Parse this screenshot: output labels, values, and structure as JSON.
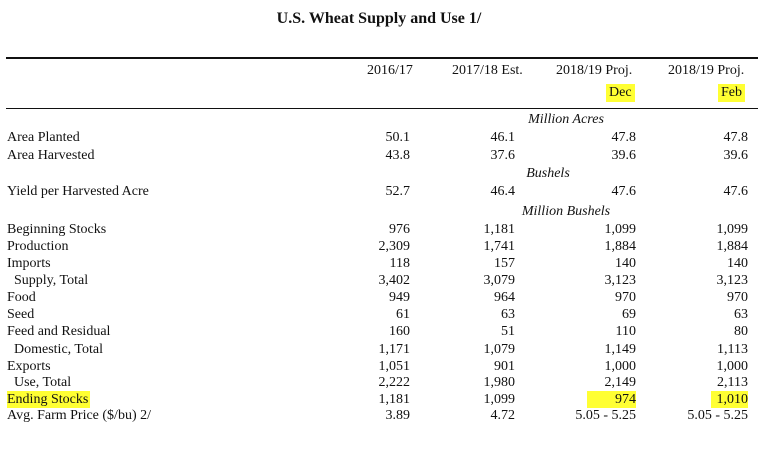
{
  "title": "U.S. Wheat Supply and Use  1/",
  "columns": [
    "2016/17",
    "2017/18 Est.",
    "2018/19 Proj.",
    "2018/19 Proj."
  ],
  "months": [
    "Dec",
    "Feb"
  ],
  "units": {
    "acres": "Million Acres",
    "bushels": "Bushels",
    "million_bushels": "Million Bushels"
  },
  "rows": {
    "area_planted": {
      "label": "Area Planted",
      "v": [
        "50.1",
        "46.1",
        "47.8",
        "47.8"
      ]
    },
    "area_harvested": {
      "label": "Area Harvested",
      "v": [
        "43.8",
        "37.6",
        "39.6",
        "39.6"
      ]
    },
    "yield": {
      "label": "Yield per Harvested Acre",
      "v": [
        "52.7",
        "46.4",
        "47.6",
        "47.6"
      ]
    },
    "beginning_stocks": {
      "label": "Beginning Stocks",
      "v": [
        "976",
        "1,181",
        "1,099",
        "1,099"
      ]
    },
    "production": {
      "label": "Production",
      "v": [
        "2,309",
        "1,741",
        "1,884",
        "1,884"
      ]
    },
    "imports": {
      "label": "Imports",
      "v": [
        "118",
        "157",
        "140",
        "140"
      ]
    },
    "supply_total": {
      "label": "Supply, Total",
      "v": [
        "3,402",
        "3,079",
        "3,123",
        "3,123"
      ]
    },
    "food": {
      "label": "Food",
      "v": [
        "949",
        "964",
        "970",
        "970"
      ]
    },
    "seed": {
      "label": "Seed",
      "v": [
        "61",
        "63",
        "69",
        "63"
      ]
    },
    "feed_residual": {
      "label": "Feed and Residual",
      "v": [
        "160",
        "51",
        "110",
        "80"
      ]
    },
    "domestic_total": {
      "label": "Domestic, Total",
      "v": [
        "1,171",
        "1,079",
        "1,149",
        "1,113"
      ]
    },
    "exports": {
      "label": "Exports",
      "v": [
        "1,051",
        "901",
        "1,000",
        "1,000"
      ]
    },
    "use_total": {
      "label": "Use, Total",
      "v": [
        "2,222",
        "1,980",
        "2,149",
        "2,113"
      ]
    },
    "ending_stocks": {
      "label": "Ending Stocks",
      "v": [
        "1,181",
        "1,099",
        "974",
        "1,010"
      ]
    },
    "farm_price": {
      "label": "Avg. Farm Price ($/bu)  2/",
      "v": [
        "3.89",
        "4.72",
        "5.05 - 5.25",
        "5.05 - 5.25"
      ]
    }
  },
  "highlight_color": "#ffff33"
}
